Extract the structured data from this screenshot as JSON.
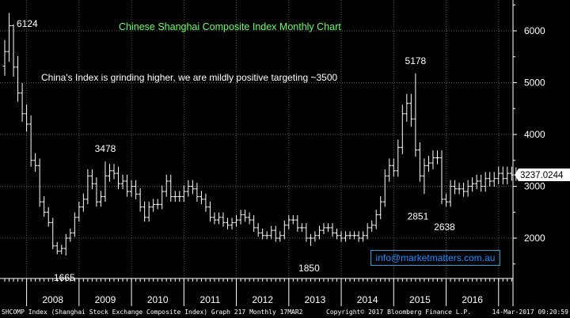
{
  "chart_data": {
    "type": "ohlc",
    "title": "Chinese Shanghai Composite Index Monthly Chart",
    "annotation": "China's Index is grinding higher, we are mildly positive targeting ~3500",
    "x_labels": [
      "2008",
      "2009",
      "2010",
      "2011",
      "2012",
      "2013",
      "2014",
      "2015",
      "2016"
    ],
    "y_ticks": [
      2000,
      3000,
      4000,
      5000,
      6000
    ],
    "y_tick_labels": [
      "2000",
      "3000",
      "4000",
      "5000",
      "6000"
    ],
    "ylim": [
      1300,
      6500
    ],
    "grid": true,
    "last_value": "3237.0244",
    "point_labels": [
      {
        "text": "6124",
        "date": "2007-10",
        "value": 6124
      },
      {
        "text": "1665",
        "date": "2008-10",
        "value": 1665
      },
      {
        "text": "3478",
        "date": "2009-07",
        "value": 3478
      },
      {
        "text": "1850",
        "date": "2013-06",
        "value": 1850
      },
      {
        "text": "5178",
        "date": "2015-06",
        "value": 5178
      },
      {
        "text": "2851",
        "date": "2015-08",
        "value": 2851
      },
      {
        "text": "2638",
        "date": "2016-01",
        "value": 2638
      }
    ],
    "close_series": [
      5600,
      6100,
      5300,
      4800,
      4400,
      4200,
      3500,
      3400,
      2700,
      2500,
      2300,
      1850,
      1750,
      1800,
      2000,
      2100,
      2400,
      2600,
      2750,
      3200,
      3050,
      2700,
      2800,
      3200,
      3300,
      3250,
      3050,
      3100,
      2900,
      3000,
      2850,
      2600,
      2400,
      2600,
      2650,
      2650,
      2900,
      3100,
      2800,
      2800,
      2800,
      2900,
      3000,
      2950,
      2800,
      2750,
      2600,
      2400,
      2350,
      2400,
      2300,
      2250,
      2300,
      2350,
      2450,
      2400,
      2350,
      2200,
      2100,
      2050,
      2050,
      2150,
      2000,
      2050,
      2250,
      2350,
      2350,
      2200,
      2200,
      2000,
      2000,
      2050,
      2150,
      2200,
      2200,
      2100,
      2050,
      2000,
      2050,
      2050,
      2050,
      2000,
      2050,
      2200,
      2250,
      2450,
      2700,
      3200,
      3400,
      3300,
      3750,
      4400,
      4600,
      4300,
      3700,
      3200,
      3400,
      3450,
      3550,
      3550,
      2750,
      2700,
      3000,
      2950,
      2950,
      2900,
      3000,
      3050,
      3100,
      3000,
      3150,
      3100,
      3150,
      3250,
      3150,
      3250,
      3220,
      3237
    ]
  },
  "watermark": "info@marketmatters.com.au",
  "footer": {
    "left": "SHCOMP Index (Shanghai Stock Exchange Composite Index) Graph 217  Monthly 17MAR2",
    "center": "Copyright© 2017 Bloomberg Finance L.P.",
    "right": "14-Mar-2017 09:20:59"
  },
  "colors": {
    "background": "#000000",
    "bars": "#ffffff",
    "grid": "#5a5a5a",
    "title": "#66ff66",
    "text": "#ffffff",
    "watermark": "#1e90ff",
    "last_value_bg": "#ffffff",
    "last_value_text": "#000000"
  }
}
